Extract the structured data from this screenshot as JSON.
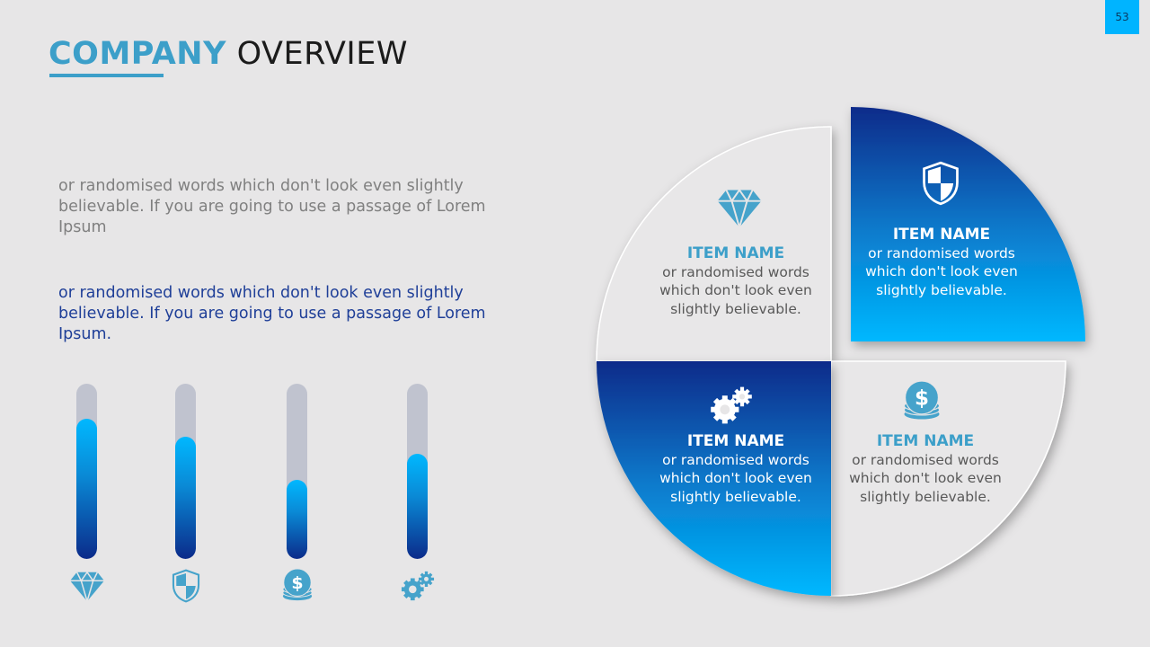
{
  "page_number": "53",
  "title": {
    "part1": "COMPANY",
    "part2": "OVERVIEW"
  },
  "paragraph1": "or randomised words which don't look even slightly believable. If you are going to use a passage of Lorem Ipsum",
  "paragraph2": "or randomised words which don't look even slightly believable. If you are going to use a passage of Lorem Ipsum.",
  "colors": {
    "accent": "#3c9fc9",
    "gradient_light": "#00b8ff",
    "gradient_dark": "#0b2b8a",
    "track": "#c0c3cf",
    "background": "#e7e6e7"
  },
  "bars": [
    {
      "icon": "diamond-icon",
      "level": 0.8
    },
    {
      "icon": "shield-icon",
      "level": 0.7
    },
    {
      "icon": "coins-icon",
      "level": 0.45
    },
    {
      "icon": "gears-icon",
      "level": 0.6
    }
  ],
  "quadrants": [
    {
      "position": "top-left",
      "icon": "diamond-icon",
      "title": "ITEM NAME",
      "text": "or randomised words which don't look even slightly believable."
    },
    {
      "position": "top-right",
      "icon": "shield-icon",
      "title": "ITEM NAME",
      "text": "or randomised words which don't look even slightly believable."
    },
    {
      "position": "bottom-left",
      "icon": "gears-icon",
      "title": "ITEM NAME",
      "text": "or randomised words which don't look even slightly believable."
    },
    {
      "position": "bottom-right",
      "icon": "coins-icon",
      "title": "ITEM NAME",
      "text": "or randomised words which don't look even slightly believable."
    }
  ]
}
